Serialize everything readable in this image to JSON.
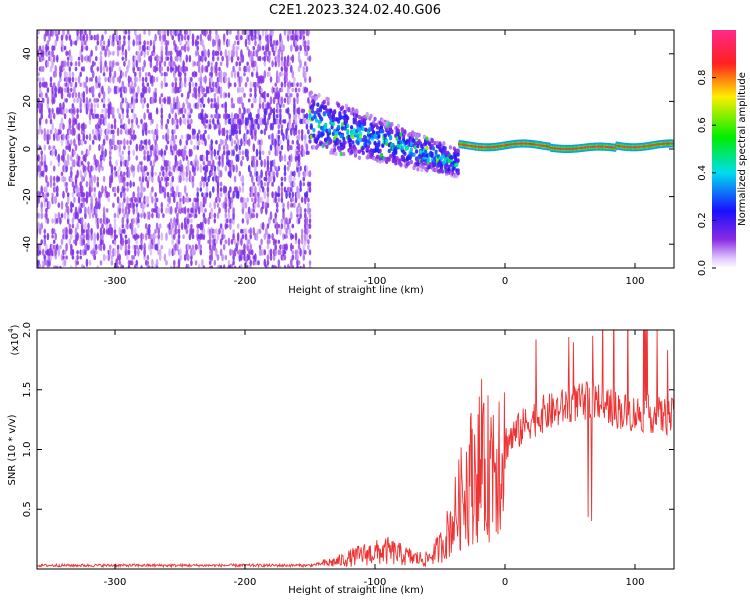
{
  "figure": {
    "title": "C2E1.2023.324.02.40.G06"
  },
  "colors": {
    "snr_line": "#ee3333",
    "axes": "#000000",
    "background": "#ffffff"
  },
  "chart_data": [
    {
      "type": "heatmap",
      "xlabel": "Height of straight line (km)",
      "ylabel": "Frequency (Hz)",
      "xlim": [
        -360,
        130
      ],
      "ylim": [
        -50,
        50
      ],
      "xticks": [
        -300,
        -200,
        -100,
        0,
        100
      ],
      "yticks": [
        -40,
        -20,
        0,
        20,
        40
      ],
      "colorbar": {
        "label": "Normalized spectral amplitude",
        "range": [
          0,
          1
        ],
        "ticks": [
          0.0,
          0.2,
          0.4,
          0.6,
          0.8
        ],
        "colormap": "rainbow (purple-blue-cyan-green-yellow-red)"
      },
      "regions": [
        {
          "x_range": [
            -360,
            -150
          ],
          "freq_range": [
            -50,
            50
          ],
          "amplitude": 0.08,
          "description": "diffuse low-amplitude noise"
        },
        {
          "x_range": [
            -150,
            -35
          ],
          "freq_center_start": 12,
          "freq_center_end": -6,
          "freq_spread": 12,
          "amplitude": 0.3
        },
        {
          "x_range": [
            -35,
            130
          ],
          "freq_center": 1.5,
          "freq_spread": 2,
          "amplitude": 0.95,
          "description": "narrow high-amplitude line"
        }
      ]
    },
    {
      "type": "line",
      "xlabel": "Height of straight line (km)",
      "ylabel": "SNR (10 * v/v)",
      "y_multiplier": "(x10",
      "y_multiplier_exp": "4",
      "y_multiplier_close": ")",
      "xlim": [
        -360,
        130
      ],
      "ylim": [
        0,
        2.0
      ],
      "xticks": [
        -300,
        -200,
        -100,
        0,
        100
      ],
      "yticks": [
        0.5,
        1.0,
        1.5,
        2.0
      ],
      "ytick_labels": [
        "0.5",
        "1.0",
        "1.5",
        "2.0"
      ],
      "series": [
        {
          "x": [
            -360,
            -300,
            -250,
            -200,
            -150,
            -130,
            -110,
            -90,
            -70,
            -60,
            -50,
            -45,
            -40,
            -35,
            -30,
            -25,
            -20,
            -15,
            -10,
            -5,
            0,
            10,
            20,
            30,
            40,
            50,
            60,
            70,
            80,
            90,
            100,
            110,
            120,
            130
          ],
          "y": [
            0.03,
            0.03,
            0.03,
            0.03,
            0.03,
            0.06,
            0.12,
            0.15,
            0.09,
            0.08,
            0.18,
            0.28,
            0.4,
            0.55,
            0.7,
            0.8,
            0.85,
            0.78,
            0.95,
            1.0,
            1.05,
            1.15,
            1.25,
            1.3,
            1.33,
            1.38,
            1.4,
            1.42,
            1.36,
            1.32,
            1.3,
            1.3,
            1.28,
            1.27
          ]
        }
      ]
    }
  ]
}
